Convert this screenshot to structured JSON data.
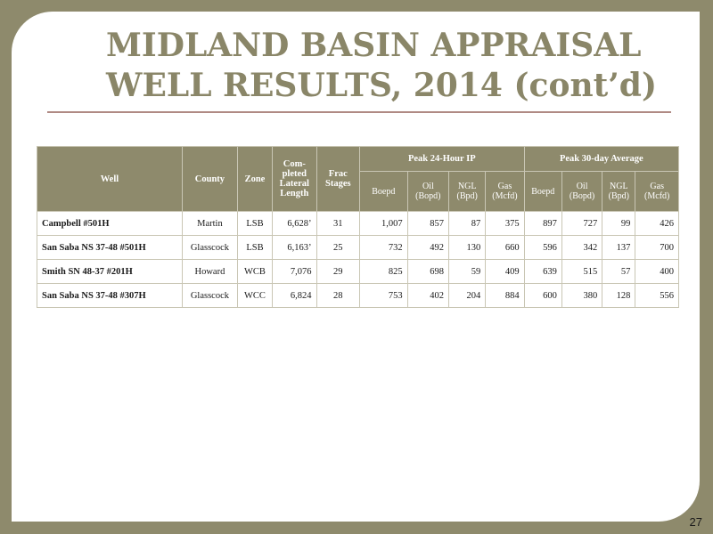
{
  "slide": {
    "title_line1": "MIDLAND BASIN APPRAISAL",
    "title_line2": "WELL RESULTS, 2014 (cont’d)",
    "page_number": "27"
  },
  "table": {
    "headers": {
      "well": "Well",
      "county": "County",
      "zone": "Zone",
      "lateral_1": "Com-",
      "lateral_2": "pleted",
      "lateral_3": "Lateral",
      "lateral_4": "Length",
      "frac_1": "Frac",
      "frac_2": "Stages",
      "peak24": "Peak 24-Hour IP",
      "peak30": "Peak 30-day Average",
      "boepd": "Boepd",
      "oil_1": "Oil",
      "oil_2": "(Bopd)",
      "ngl_1": "NGL",
      "ngl_2": "(Bpd)",
      "gas_1": "Gas",
      "gas_2": "(Mcfd)"
    },
    "rows": [
      {
        "well": "Campbell #501H",
        "county": "Martin",
        "zone": "LSB",
        "lateral": "6,628’",
        "stages": "31",
        "ip_boepd": "1,007",
        "ip_oil": "857",
        "ip_ngl": "87",
        "ip_gas": "375",
        "avg_boepd": "897",
        "avg_oil": "727",
        "avg_ngl": "99",
        "avg_gas": "426"
      },
      {
        "well": "San Saba NS 37-48 #501H",
        "county": "Glasscock",
        "zone": "LSB",
        "lateral": "6,163’",
        "stages": "25",
        "ip_boepd": "732",
        "ip_oil": "492",
        "ip_ngl": "130",
        "ip_gas": "660",
        "avg_boepd": "596",
        "avg_oil": "342",
        "avg_ngl": "137",
        "avg_gas": "700"
      },
      {
        "well": "Smith SN 48-37 #201H",
        "county": "Howard",
        "zone": "WCB",
        "lateral": "7,076",
        "stages": "29",
        "ip_boepd": "825",
        "ip_oil": "698",
        "ip_ngl": "59",
        "ip_gas": "409",
        "avg_boepd": "639",
        "avg_oil": "515",
        "avg_ngl": "57",
        "avg_gas": "400"
      },
      {
        "well": "San Saba NS 37-48 #307H",
        "county": "Glasscock",
        "zone": "WCC",
        "lateral": "6,824",
        "stages": "28",
        "ip_boepd": "753",
        "ip_oil": "402",
        "ip_ngl": "204",
        "ip_gas": "884",
        "avg_boepd": "600",
        "avg_oil": "380",
        "avg_ngl": "128",
        "avg_gas": "556"
      }
    ]
  },
  "colors": {
    "frame": "#8e8a6c",
    "title": "#8a8668",
    "header_bg": "#8e8a6c",
    "rule": "#b08a84"
  }
}
